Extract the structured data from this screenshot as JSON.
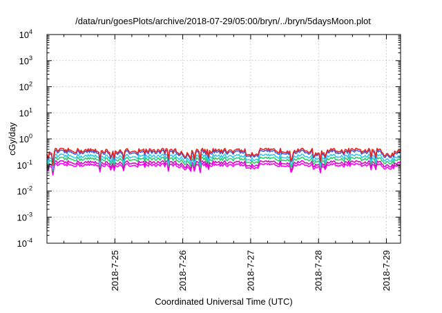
{
  "chart_data": {
    "type": "line",
    "title": "/data/run/goesPlots/archive/2018-07-29/05:00/bryn/../bryn/5daysMoon.plot",
    "xlabel": "Coordinated Universal Time (UTC)",
    "ylabel": "cGy/day",
    "yscale": "log",
    "ylim": [
      0.0001,
      10000
    ],
    "y_ticks": [
      {
        "base": "10",
        "exp": "-4"
      },
      {
        "base": "10",
        "exp": "-3"
      },
      {
        "base": "10",
        "exp": "-2"
      },
      {
        "base": "10",
        "exp": "-1"
      },
      {
        "base": "10",
        "exp": "0"
      },
      {
        "base": "10",
        "exp": "1"
      },
      {
        "base": "10",
        "exp": "2"
      },
      {
        "base": "10",
        "exp": "3"
      },
      {
        "base": "10",
        "exp": "4"
      }
    ],
    "xlim": [
      "2018-07-24T00:00",
      "2018-07-29T05:00"
    ],
    "x_ticks": [
      "2018-7-25",
      "2018-7-26",
      "2018-7-27",
      "2018-7-28",
      "2018-7-29"
    ],
    "grid": true,
    "series": [
      {
        "color": "#e8231f",
        "level": 0.36
      },
      {
        "color": "#3a5fe6",
        "level": 0.31
      },
      {
        "color": "#36c8e8",
        "level": 0.22
      },
      {
        "color": "#2ecb6b",
        "level": 0.17
      },
      {
        "color": "#d40ac4",
        "level": 0.125
      },
      {
        "color": "#ff00ff",
        "level": 0.1
      }
    ]
  }
}
